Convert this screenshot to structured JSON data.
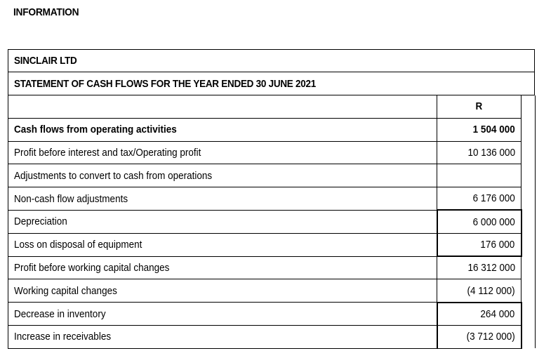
{
  "page": {
    "heading": "INFORMATION"
  },
  "statement": {
    "company": "SINCLAIR LTD",
    "title": "STATEMENT OF CASH FLOWS FOR THE YEAR ENDED 30 JUNE 2021",
    "currency_header": "R",
    "rows": [
      {
        "label": "Cash flows from operating activities",
        "amount": "1 504 000"
      },
      {
        "label": "Profit before interest and tax/Operating profit",
        "amount": "10 136 000"
      },
      {
        "label": "Adjustments to convert to cash from operations",
        "amount": ""
      },
      {
        "label": "Non-cash flow adjustments",
        "amount": "6 176 000"
      },
      {
        "label": "Depreciation",
        "amount": "6 000 000"
      },
      {
        "label": "Loss on disposal of equipment",
        "amount": "176 000"
      },
      {
        "label": "Profit before working capital changes",
        "amount": "16 312 000"
      },
      {
        "label": "Working capital changes",
        "amount": "(4 112 000)"
      },
      {
        "label": "Decrease in inventory",
        "amount": "264 000"
      },
      {
        "label": "Increase in receivables",
        "amount": "(3 712 000)"
      }
    ]
  }
}
